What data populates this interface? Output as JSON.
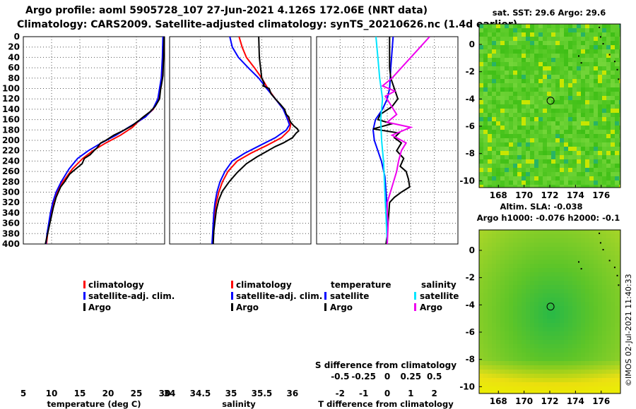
{
  "titles": {
    "line1": "Argo profile: aoml 5905728_107 27-Jun-2021 4.126S 172.06E (NRT data)",
    "line2": "Climatology: CARS2009. Satellite-adjusted climatology: synTS_20210626.nc (1.4d earlier)"
  },
  "colors": {
    "climatology": "#ff0000",
    "satellite": "#0000ff",
    "argo": "#000000",
    "sat_salinity": "#00e5ff",
    "argo_salinity": "#ee00ee",
    "map_green": "#33cc33",
    "map_yellow": "#e6f000"
  },
  "chart_data": [
    {
      "type": "line",
      "name": "temperature-profile",
      "xlabel": "temperature (deg C)",
      "xlim": [
        5,
        30
      ],
      "xticks": [
        "5",
        "10",
        "15",
        "20",
        "25",
        "30"
      ],
      "ylim": [
        400,
        0
      ],
      "yticks": [
        "0",
        "20",
        "40",
        "60",
        "80",
        "100",
        "120",
        "140",
        "160",
        "180",
        "200",
        "220",
        "240",
        "260",
        "280",
        "300",
        "320",
        "340",
        "360",
        "380",
        "400"
      ],
      "legend": [
        "climatology",
        "satellite-adj. clim.",
        "Argo"
      ],
      "series": [
        {
          "name": "climatology",
          "color": "#ff0000",
          "points": [
            [
              29.9,
              0
            ],
            [
              29.8,
              40
            ],
            [
              29.6,
              80
            ],
            [
              29.3,
              100
            ],
            [
              28.9,
              120
            ],
            [
              28.0,
              140
            ],
            [
              26.5,
              155
            ],
            [
              25.2,
              165
            ],
            [
              24.3,
              175
            ],
            [
              22.2,
              190
            ],
            [
              19.6,
              205
            ],
            [
              17.3,
              220
            ],
            [
              15.5,
              235
            ],
            [
              13.7,
              255
            ],
            [
              12.0,
              280
            ],
            [
              11.0,
              300
            ],
            [
              10.4,
              320
            ],
            [
              10.0,
              340
            ],
            [
              9.6,
              360
            ],
            [
              9.3,
              380
            ],
            [
              9.1,
              400
            ]
          ]
        },
        {
          "name": "satellite-adj. clim.",
          "color": "#0000ff",
          "points": [
            [
              29.7,
              0
            ],
            [
              29.6,
              40
            ],
            [
              29.4,
              80
            ],
            [
              29.1,
              100
            ],
            [
              28.8,
              120
            ],
            [
              27.9,
              140
            ],
            [
              26.6,
              155
            ],
            [
              25.1,
              165
            ],
            [
              23.6,
              175
            ],
            [
              21.4,
              190
            ],
            [
              18.8,
              205
            ],
            [
              16.5,
              220
            ],
            [
              14.6,
              235
            ],
            [
              13.1,
              255
            ],
            [
              11.7,
              280
            ],
            [
              10.8,
              300
            ],
            [
              10.2,
              320
            ],
            [
              9.8,
              340
            ],
            [
              9.5,
              360
            ],
            [
              9.2,
              380
            ],
            [
              9.0,
              400
            ]
          ]
        },
        {
          "name": "Argo",
          "color": "#000000",
          "points": [
            [
              29.9,
              0
            ],
            [
              29.8,
              40
            ],
            [
              29.7,
              75
            ],
            [
              29.4,
              95
            ],
            [
              29.3,
              100
            ],
            [
              29.1,
              120
            ],
            [
              28.3,
              135
            ],
            [
              27.4,
              145
            ],
            [
              26.2,
              155
            ],
            [
              25.4,
              162
            ],
            [
              24.2,
              172
            ],
            [
              22.9,
              180
            ],
            [
              21.0,
              190
            ],
            [
              19.6,
              200
            ],
            [
              18.7,
              205
            ],
            [
              18.0,
              215
            ],
            [
              17.5,
              220
            ],
            [
              16.8,
              228
            ],
            [
              15.8,
              235
            ],
            [
              15.4,
              245
            ],
            [
              14.3,
              255
            ],
            [
              13.2,
              265
            ],
            [
              12.3,
              280
            ],
            [
              11.6,
              290
            ],
            [
              11.2,
              300
            ],
            [
              10.8,
              310
            ],
            [
              10.3,
              330
            ],
            [
              9.9,
              350
            ],
            [
              9.5,
              370
            ],
            [
              9.2,
              385
            ],
            [
              8.9,
              400
            ]
          ]
        }
      ]
    },
    {
      "type": "line",
      "name": "salinity-profile",
      "xlabel": "salinity",
      "xlim": [
        34,
        36.3
      ],
      "xticks": [
        "34",
        "34.5",
        "35",
        "35.5",
        "36"
      ],
      "ylim": [
        400,
        0
      ],
      "legend": [
        "climatology",
        "satellite-adj. clim.",
        "Argo"
      ],
      "series": [
        {
          "name": "climatology",
          "color": "#ff0000",
          "points": [
            [
              35.13,
              0
            ],
            [
              35.18,
              20
            ],
            [
              35.25,
              40
            ],
            [
              35.38,
              60
            ],
            [
              35.5,
              80
            ],
            [
              35.6,
              100
            ],
            [
              35.72,
              120
            ],
            [
              35.85,
              140
            ],
            [
              35.93,
              160
            ],
            [
              35.97,
              170
            ],
            [
              35.95,
              180
            ],
            [
              35.82,
              195
            ],
            [
              35.58,
              210
            ],
            [
              35.32,
              225
            ],
            [
              35.1,
              240
            ],
            [
              34.95,
              260
            ],
            [
              34.86,
              280
            ],
            [
              34.8,
              300
            ],
            [
              34.76,
              320
            ],
            [
              34.73,
              340
            ],
            [
              34.72,
              360
            ],
            [
              34.71,
              380
            ],
            [
              34.7,
              400
            ]
          ]
        },
        {
          "name": "satellite-adj. clim.",
          "color": "#0000ff",
          "points": [
            [
              34.98,
              0
            ],
            [
              35.02,
              20
            ],
            [
              35.12,
              40
            ],
            [
              35.28,
              60
            ],
            [
              35.45,
              80
            ],
            [
              35.58,
              100
            ],
            [
              35.72,
              120
            ],
            [
              35.85,
              140
            ],
            [
              35.92,
              160
            ],
            [
              35.95,
              170
            ],
            [
              35.9,
              180
            ],
            [
              35.72,
              195
            ],
            [
              35.47,
              210
            ],
            [
              35.22,
              225
            ],
            [
              35.02,
              240
            ],
            [
              34.9,
              260
            ],
            [
              34.82,
              280
            ],
            [
              34.77,
              300
            ],
            [
              34.74,
              320
            ],
            [
              34.72,
              340
            ],
            [
              34.71,
              360
            ],
            [
              34.7,
              380
            ],
            [
              34.69,
              400
            ]
          ]
        },
        {
          "name": "Argo",
          "color": "#000000",
          "points": [
            [
              35.45,
              0
            ],
            [
              35.46,
              40
            ],
            [
              35.48,
              60
            ],
            [
              35.5,
              80
            ],
            [
              35.54,
              90
            ],
            [
              35.52,
              95
            ],
            [
              35.62,
              100
            ],
            [
              35.65,
              110
            ],
            [
              35.72,
              120
            ],
            [
              35.8,
              130
            ],
            [
              35.87,
              140
            ],
            [
              35.9,
              150
            ],
            [
              35.94,
              155
            ],
            [
              35.95,
              160
            ],
            [
              35.97,
              165
            ],
            [
              36.02,
              172
            ],
            [
              36.08,
              178
            ],
            [
              36.1,
              182
            ],
            [
              36.06,
              186
            ],
            [
              36.0,
              195
            ],
            [
              35.85,
              205
            ],
            [
              35.72,
              212
            ],
            [
              35.6,
              220
            ],
            [
              35.42,
              232
            ],
            [
              35.25,
              245
            ],
            [
              35.1,
              262
            ],
            [
              34.97,
              280
            ],
            [
              34.86,
              298
            ],
            [
              34.8,
              315
            ],
            [
              34.76,
              335
            ],
            [
              34.74,
              355
            ],
            [
              34.72,
              375
            ],
            [
              34.71,
              400
            ]
          ]
        }
      ]
    },
    {
      "type": "line",
      "name": "difference-profile",
      "xlabel": "T difference from climatology",
      "xlim": [
        -3,
        3
      ],
      "xticks": [
        "-2",
        "-1",
        "0",
        "1",
        "2"
      ],
      "top_axis_label": "S difference from climatology",
      "top_ticks": [
        "-0.5",
        "-0.25",
        "0",
        "0.25",
        "0.5"
      ],
      "ylim": [
        400,
        0
      ],
      "legend_left_header": "temperature",
      "legend_right_header": "salinity",
      "legend": [
        "satellite",
        "Argo",
        "satellite",
        "Argo"
      ],
      "series": [
        {
          "name": "temperature satellite",
          "color": "#0000ff",
          "points": [
            [
              0.25,
              0
            ],
            [
              0.15,
              60
            ],
            [
              0.1,
              100
            ],
            [
              0.0,
              120
            ],
            [
              -0.2,
              140
            ],
            [
              -0.5,
              160
            ],
            [
              -0.6,
              180
            ],
            [
              -0.55,
              200
            ],
            [
              -0.4,
              220
            ],
            [
              -0.25,
              240
            ],
            [
              -0.1,
              270
            ],
            [
              -0.05,
              300
            ],
            [
              0.0,
              340
            ],
            [
              0.0,
              400
            ]
          ]
        },
        {
          "name": "temperature Argo",
          "color": "#000000",
          "points": [
            [
              0.1,
              0
            ],
            [
              0.1,
              60
            ],
            [
              0.15,
              80
            ],
            [
              0.3,
              100
            ],
            [
              0.45,
              120
            ],
            [
              0.2,
              135
            ],
            [
              -0.3,
              150
            ],
            [
              -0.4,
              160
            ],
            [
              0.2,
              168
            ],
            [
              -0.6,
              178
            ],
            [
              0.5,
              186
            ],
            [
              0.3,
              195
            ],
            [
              0.6,
              205
            ],
            [
              0.4,
              220
            ],
            [
              0.7,
              235
            ],
            [
              0.55,
              250
            ],
            [
              0.8,
              260
            ],
            [
              0.9,
              275
            ],
            [
              0.95,
              290
            ],
            [
              0.6,
              300
            ],
            [
              0.3,
              310
            ],
            [
              0.1,
              320
            ],
            [
              0.05,
              350
            ],
            [
              0.0,
              380
            ],
            [
              -0.05,
              400
            ]
          ]
        },
        {
          "name": "salinity satellite",
          "color": "#00e5ff",
          "points": [
            [
              -0.12,
              0
            ],
            [
              -0.1,
              40
            ],
            [
              -0.08,
              80
            ],
            [
              -0.05,
              120
            ],
            [
              -0.07,
              160
            ],
            [
              -0.06,
              200
            ],
            [
              -0.04,
              240
            ],
            [
              -0.03,
              280
            ],
            [
              -0.02,
              320
            ],
            [
              -0.01,
              360
            ],
            [
              0.0,
              400
            ]
          ]
        },
        {
          "name": "salinity Argo",
          "color": "#ee00ee",
          "points": [
            [
              0.45,
              0
            ],
            [
              0.35,
              20
            ],
            [
              0.25,
              40
            ],
            [
              0.15,
              60
            ],
            [
              0.05,
              80
            ],
            [
              -0.05,
              95
            ],
            [
              0.08,
              105
            ],
            [
              -0.02,
              115
            ],
            [
              0.1,
              150
            ],
            [
              0.0,
              165
            ],
            [
              0.25,
              175
            ],
            [
              0.05,
              190
            ],
            [
              0.2,
              205
            ],
            [
              0.15,
              220
            ],
            [
              0.12,
              240
            ],
            [
              0.1,
              260
            ],
            [
              0.05,
              290
            ],
            [
              0.0,
              320
            ],
            [
              0.0,
              340
            ],
            [
              0.01,
              360
            ],
            [
              0.0,
              400
            ]
          ]
        }
      ]
    },
    {
      "type": "heatmap",
      "name": "sst-map",
      "title": "sat. SST: 29.6 Argo: 29.6",
      "xlim": [
        166.5,
        177.5
      ],
      "ylim": [
        -10.5,
        1.5
      ],
      "xticks": [
        "168",
        "170",
        "172",
        "174",
        "176"
      ],
      "yticks": [
        "0",
        "-2",
        "-4",
        "-6",
        "-8",
        "-10"
      ],
      "marker": [
        172.06,
        -4.126
      ]
    },
    {
      "type": "heatmap",
      "name": "sla-map",
      "title1": "Altim. SLA: -0.038",
      "title2": "Argo h1000: -0.076 h2000: -0.1",
      "xlim": [
        166.5,
        177.5
      ],
      "ylim": [
        -10.5,
        1.5
      ],
      "xticks": [
        "168",
        "170",
        "172",
        "174",
        "176"
      ],
      "yticks": [
        "0",
        "-2",
        "-4",
        "-6",
        "-8",
        "-10"
      ],
      "marker": [
        172.06,
        -4.126
      ]
    }
  ],
  "stamp": "©IMOS 02-Jul-2021 11:40:33"
}
